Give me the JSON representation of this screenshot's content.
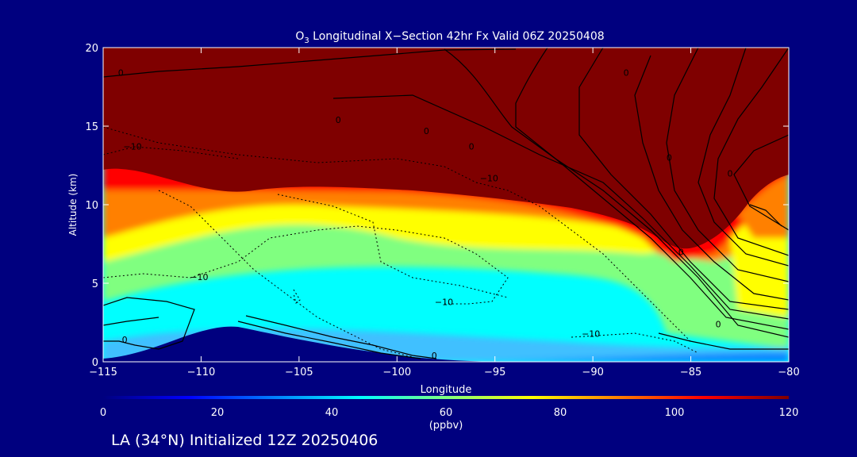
{
  "chart_data": {
    "type": "heatmap",
    "title_prefix": "O",
    "title_sub": "3",
    "title_rest": " Longitudinal X−Section 42hr  Fx Valid 06Z 20250408",
    "xlabel": "Longitude",
    "ylabel": "Altitude (km)",
    "xlim": [
      -115,
      -80
    ],
    "ylim": [
      0,
      20
    ],
    "x_ticks": [
      -115,
      -110,
      -105,
      -100,
      -95,
      -90,
      -85,
      -80
    ],
    "x_tick_labels": [
      "−115",
      "−110",
      "−105",
      "−100",
      "−95",
      "−90",
      "−85",
      "−80"
    ],
    "y_ticks": [
      0,
      5,
      10,
      15,
      20
    ],
    "y_tick_labels": [
      "0",
      "5",
      "10",
      "15",
      "20"
    ],
    "colorbar": {
      "min": 0,
      "max": 120,
      "ticks": [
        0,
        20,
        40,
        60,
        80,
        100,
        120
      ],
      "tick_labels": [
        "0",
        "20",
        "40",
        "60",
        "80",
        "100",
        "120"
      ],
      "unit_label": "(ppbv)",
      "colors": [
        "#00007f",
        "#0000ff",
        "#0080ff",
        "#00ffff",
        "#80ff80",
        "#ffff00",
        "#ff8000",
        "#ff0000",
        "#7f0000"
      ]
    },
    "ozone_field": {
      "description_levels_ppbv": [
        30,
        50,
        60,
        70,
        80,
        90,
        100,
        110,
        120
      ],
      "tropopause_km": [
        [
          -115,
          12.2
        ],
        [
          -112,
          12.0
        ],
        [
          -110,
          11.5
        ],
        [
          -108,
          11.0
        ],
        [
          -105,
          11.0
        ],
        [
          -103,
          11.2
        ],
        [
          -100,
          11.0
        ],
        [
          -95,
          10.4
        ],
        [
          -92,
          9.6
        ],
        [
          -89,
          8.7
        ],
        [
          -87,
          7.8
        ],
        [
          -86,
          6.5
        ],
        [
          -85,
          6.6
        ],
        [
          -84,
          7.5
        ],
        [
          -83,
          9.0
        ],
        [
          -82,
          10.5
        ],
        [
          -80,
          12.0
        ]
      ],
      "terrain_km": [
        [
          -115,
          0
        ],
        [
          -113,
          0.2
        ],
        [
          -111,
          1.2
        ],
        [
          -109,
          2.1
        ],
        [
          -107,
          1.8
        ],
        [
          -105,
          1.5
        ],
        [
          -103,
          1.1
        ],
        [
          -101,
          0.8
        ],
        [
          -99,
          0.5
        ],
        [
          -97,
          0.3
        ],
        [
          -95,
          0.1
        ],
        [
          -93,
          0
        ],
        [
          -80,
          0
        ]
      ]
    },
    "contour_labels": [
      {
        "text": "0",
        "x": -114.1,
        "y": 18.2
      },
      {
        "text": "−10",
        "x": -113.5,
        "y": 13.5
      },
      {
        "text": "0",
        "x": -103.0,
        "y": 15.2
      },
      {
        "text": "0",
        "x": -98.5,
        "y": 14.5
      },
      {
        "text": "0",
        "x": -96.2,
        "y": 13.5
      },
      {
        "text": "−10",
        "x": -95.3,
        "y": 11.5
      },
      {
        "text": "−10",
        "x": -110.1,
        "y": 5.2
      },
      {
        "text": "−10",
        "x": -97.6,
        "y": 3.6
      },
      {
        "text": "−10",
        "x": -90.1,
        "y": 1.6
      },
      {
        "text": "0",
        "x": -113.9,
        "y": 1.2
      },
      {
        "text": "0",
        "x": -98.1,
        "y": 0.2
      },
      {
        "text": "0",
        "x": -88.3,
        "y": 18.2
      },
      {
        "text": "0",
        "x": -86.1,
        "y": 12.8
      },
      {
        "text": "0",
        "x": -83.0,
        "y": 11.8
      },
      {
        "text": "0",
        "x": -85.5,
        "y": 6.8
      },
      {
        "text": "0",
        "x": -83.6,
        "y": 2.2
      }
    ]
  },
  "footer": {
    "caption": "LA (34°N) Initialized 12Z 20250406"
  }
}
